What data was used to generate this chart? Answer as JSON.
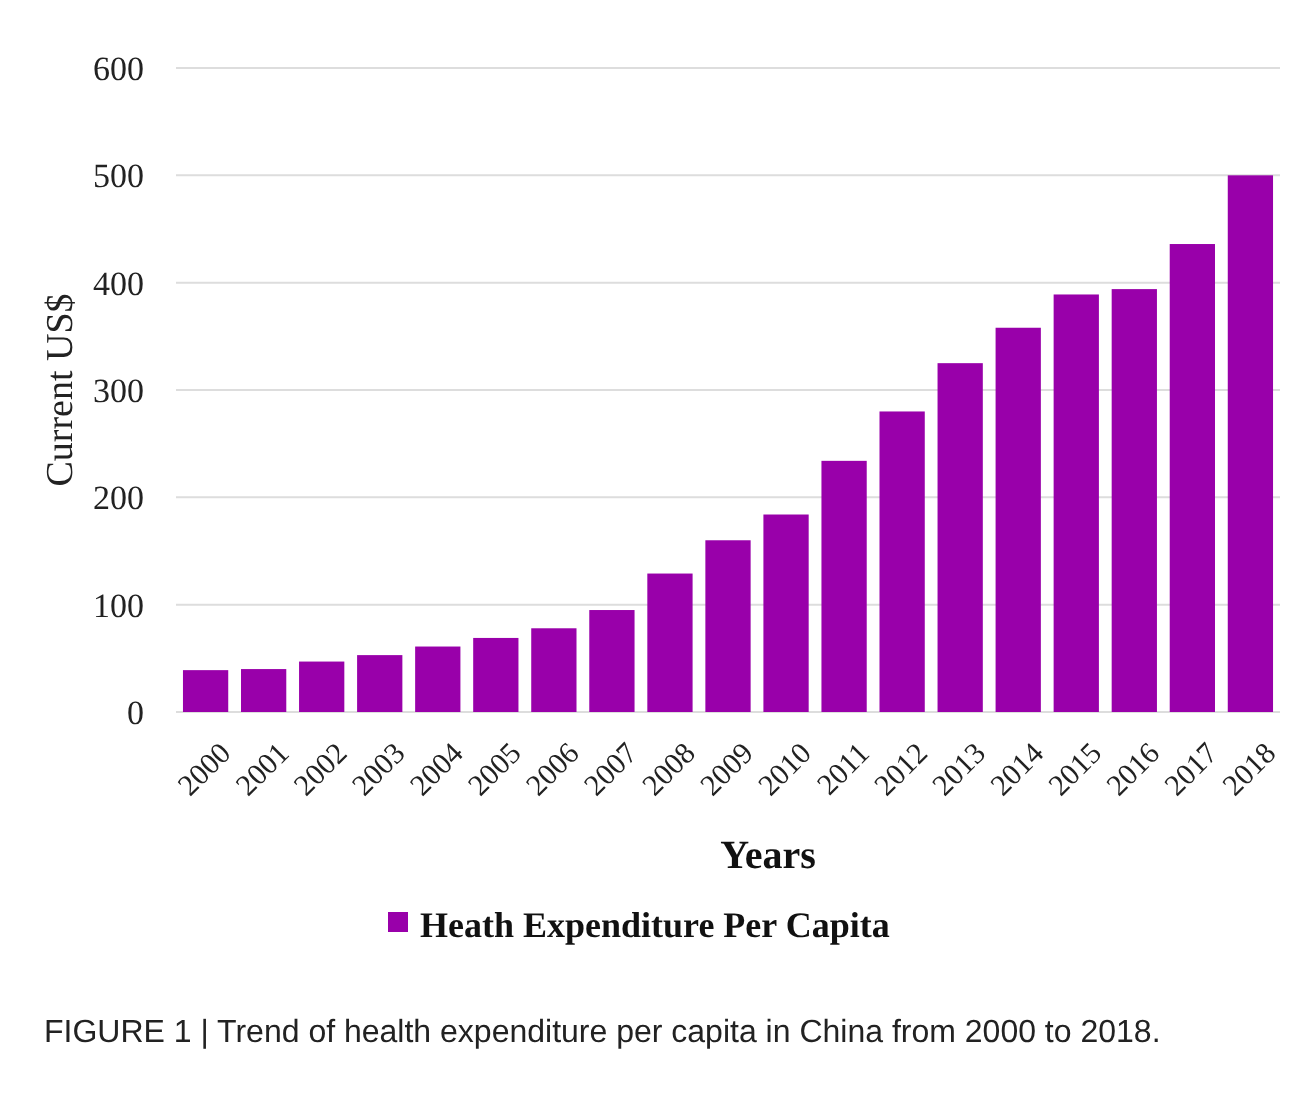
{
  "chart_data": {
    "type": "bar",
    "xlabel": "Years",
    "ylabel": "Current US$",
    "categories": [
      "2000",
      "2001",
      "2002",
      "2003",
      "2004",
      "2005",
      "2006",
      "2007",
      "2008",
      "2009",
      "2010",
      "2011",
      "2012",
      "2013",
      "2014",
      "2015",
      "2016",
      "2017",
      "2018"
    ],
    "series": [
      {
        "name": "Heath Expenditure Per Capita",
        "color": "#9900aa",
        "values": [
          39,
          40,
          47,
          53,
          61,
          69,
          78,
          95,
          129,
          160,
          184,
          234,
          280,
          325,
          358,
          389,
          394,
          436,
          500
        ]
      }
    ],
    "ylim": [
      0,
      600
    ],
    "yticks": [
      0,
      100,
      200,
      300,
      400,
      500,
      600
    ],
    "grid": "y",
    "legend": "bottom",
    "annotations": [
      "FIGURE 1 | Trend of health expenditure per capita in China from 2000 to 2018."
    ]
  }
}
